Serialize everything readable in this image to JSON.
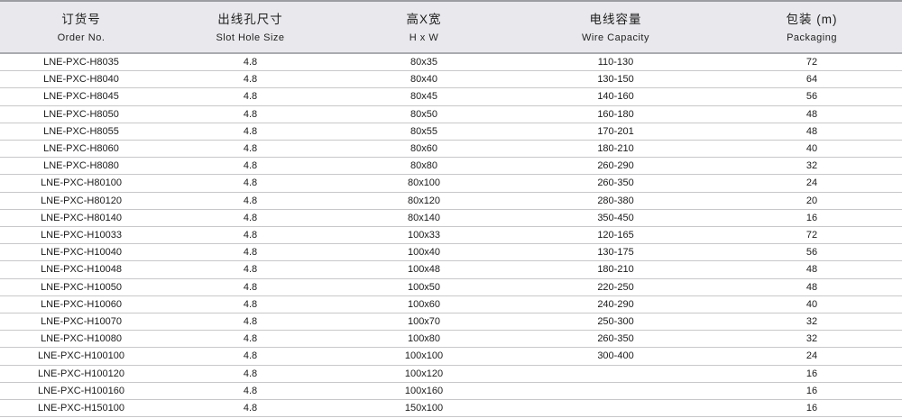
{
  "colors": {
    "header_background": "#e9e9ed",
    "top_rule": "#9b9da3",
    "header_rule": "#a9abb0",
    "row_rule": "#c8c8ca",
    "text": "#1b1b1b"
  },
  "table": {
    "columns": [
      {
        "key": "order-no",
        "zh": "订货号",
        "en": "Order No."
      },
      {
        "key": "slot-hole-size",
        "zh": "出线孔尺寸",
        "en": "Slot Hole Size"
      },
      {
        "key": "h-x-w",
        "zh": "高X宽",
        "en": "H x W"
      },
      {
        "key": "wire-capacity",
        "zh": "电线容量",
        "en": "Wire Capacity"
      },
      {
        "key": "packaging",
        "zh": "包装 (m)",
        "en": "Packaging"
      }
    ],
    "rows": [
      [
        "LNE-PXC-H8035",
        "4.8",
        "80x35",
        "110-130",
        "72"
      ],
      [
        "LNE-PXC-H8040",
        "4.8",
        "80x40",
        "130-150",
        "64"
      ],
      [
        "LNE-PXC-H8045",
        "4.8",
        "80x45",
        "140-160",
        "56"
      ],
      [
        "LNE-PXC-H8050",
        "4.8",
        "80x50",
        "160-180",
        "48"
      ],
      [
        "LNE-PXC-H8055",
        "4.8",
        "80x55",
        "170-201",
        "48"
      ],
      [
        "LNE-PXC-H8060",
        "4.8",
        "80x60",
        "180-210",
        "40"
      ],
      [
        "LNE-PXC-H8080",
        "4.8",
        "80x80",
        "260-290",
        "32"
      ],
      [
        "LNE-PXC-H80100",
        "4.8",
        "80x100",
        "260-350",
        "24"
      ],
      [
        "LNE-PXC-H80120",
        "4.8",
        "80x120",
        "280-380",
        "20"
      ],
      [
        "LNE-PXC-H80140",
        "4.8",
        "80x140",
        "350-450",
        "16"
      ],
      [
        "LNE-PXC-H10033",
        "4.8",
        "100x33",
        "120-165",
        "72"
      ],
      [
        "LNE-PXC-H10040",
        "4.8",
        "100x40",
        "130-175",
        "56"
      ],
      [
        "LNE-PXC-H10048",
        "4.8",
        "100x48",
        "180-210",
        "48"
      ],
      [
        "LNE-PXC-H10050",
        "4.8",
        "100x50",
        "220-250",
        "48"
      ],
      [
        "LNE-PXC-H10060",
        "4.8",
        "100x60",
        "240-290",
        "40"
      ],
      [
        "LNE-PXC-H10070",
        "4.8",
        "100x70",
        "250-300",
        "32"
      ],
      [
        "LNE-PXC-H10080",
        "4.8",
        "100x80",
        "260-350",
        "32"
      ],
      [
        "LNE-PXC-H100100",
        "4.8",
        "100x100",
        "300-400",
        "24"
      ],
      [
        "LNE-PXC-H100120",
        "4.8",
        "100x120",
        "",
        "16"
      ],
      [
        "LNE-PXC-H100160",
        "4.8",
        "100x160",
        "",
        "16"
      ],
      [
        "LNE-PXC-H150100",
        "4.8",
        "150x100",
        "",
        "16"
      ]
    ]
  }
}
